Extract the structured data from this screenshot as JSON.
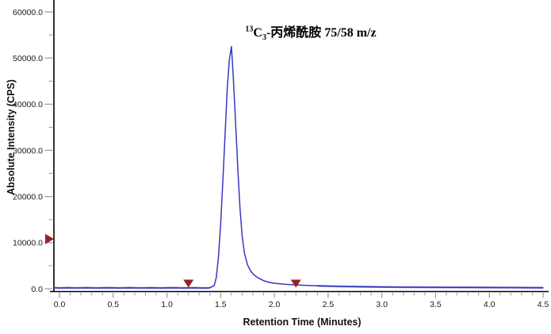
{
  "chart_data": {
    "type": "line",
    "title": {
      "isotope_sup": "13",
      "element": "C",
      "count_sub": "3",
      "rest": "-丙烯酰胺 75/58 m/z"
    },
    "xlabel": "Retention Time (Minutes)",
    "ylabel": "Absolute Intensity (CPS)",
    "xlim": [
      0.0,
      4.5
    ],
    "ylim": [
      0.0,
      60000.0
    ],
    "x_minor_step": 0.1,
    "y_minor_step": 5000,
    "grid": false,
    "legend": "none",
    "x_ticks": [
      {
        "v": 0.0,
        "label": "0.0"
      },
      {
        "v": 0.5,
        "label": "0.5"
      },
      {
        "v": 1.0,
        "label": "1.0"
      },
      {
        "v": 1.5,
        "label": "1.5"
      },
      {
        "v": 2.0,
        "label": "2.0"
      },
      {
        "v": 2.5,
        "label": "2.5"
      },
      {
        "v": 3.0,
        "label": "3.0"
      },
      {
        "v": 3.5,
        "label": "3.5"
      },
      {
        "v": 4.0,
        "label": "4.0"
      },
      {
        "v": 4.5,
        "label": "4.5"
      }
    ],
    "y_ticks": [
      {
        "v": 0,
        "label": "0.0"
      },
      {
        "v": 10000,
        "label": "10000.0"
      },
      {
        "v": 20000,
        "label": "20000.0"
      },
      {
        "v": 30000,
        "label": "30000.0"
      },
      {
        "v": 40000,
        "label": "40000.0"
      },
      {
        "v": 50000,
        "label": "50000.0"
      },
      {
        "v": 60000,
        "label": "60000.0"
      }
    ],
    "series": [
      {
        "name": "13C3-丙烯酰胺 75/58 m/z",
        "color": "#3737c2",
        "peak_apex": {
          "retention_time_min": 1.6,
          "intensity_cps": 52500
        },
        "points": [
          [
            -0.05,
            200
          ],
          [
            0.0,
            180
          ],
          [
            0.08,
            230
          ],
          [
            0.15,
            170
          ],
          [
            0.25,
            220
          ],
          [
            0.35,
            180
          ],
          [
            0.45,
            230
          ],
          [
            0.55,
            180
          ],
          [
            0.65,
            220
          ],
          [
            0.75,
            170
          ],
          [
            0.85,
            210
          ],
          [
            0.95,
            180
          ],
          [
            1.05,
            220
          ],
          [
            1.15,
            180
          ],
          [
            1.25,
            210
          ],
          [
            1.32,
            180
          ],
          [
            1.38,
            170
          ],
          [
            1.4,
            220
          ],
          [
            1.44,
            700
          ],
          [
            1.46,
            2500
          ],
          [
            1.48,
            7000
          ],
          [
            1.5,
            14000
          ],
          [
            1.52,
            23000
          ],
          [
            1.54,
            33000
          ],
          [
            1.56,
            43000
          ],
          [
            1.58,
            49500
          ],
          [
            1.6,
            52500
          ],
          [
            1.615,
            47000
          ],
          [
            1.63,
            40000
          ],
          [
            1.645,
            33000
          ],
          [
            1.66,
            26000
          ],
          [
            1.68,
            17500
          ],
          [
            1.7,
            11500
          ],
          [
            1.72,
            7800
          ],
          [
            1.75,
            5200
          ],
          [
            1.78,
            3800
          ],
          [
            1.81,
            3000
          ],
          [
            1.85,
            2350
          ],
          [
            1.9,
            1750
          ],
          [
            1.95,
            1400
          ],
          [
            2.0,
            1200
          ],
          [
            2.07,
            1030
          ],
          [
            2.15,
            900
          ],
          [
            2.25,
            780
          ],
          [
            2.4,
            640
          ],
          [
            2.6,
            520
          ],
          [
            2.8,
            440
          ],
          [
            3.0,
            390
          ],
          [
            3.2,
            350
          ],
          [
            3.4,
            330
          ],
          [
            3.6,
            310
          ],
          [
            3.8,
            290
          ],
          [
            4.0,
            270
          ],
          [
            4.2,
            250
          ],
          [
            4.35,
            240
          ],
          [
            4.5,
            230
          ]
        ]
      }
    ],
    "markers": [
      {
        "type": "right-arrow",
        "axis": "y",
        "value": 10800,
        "color": "#992323",
        "name": "intensity-threshold-marker"
      },
      {
        "type": "down-triangle",
        "axis": "x",
        "value": 1.2,
        "color": "#992323",
        "name": "window-start-marker"
      },
      {
        "type": "down-triangle",
        "axis": "x",
        "value": 2.2,
        "color": "#992323",
        "name": "window-end-marker"
      }
    ],
    "axis_color": "#000000",
    "tick_color": "#9a9a9a"
  }
}
